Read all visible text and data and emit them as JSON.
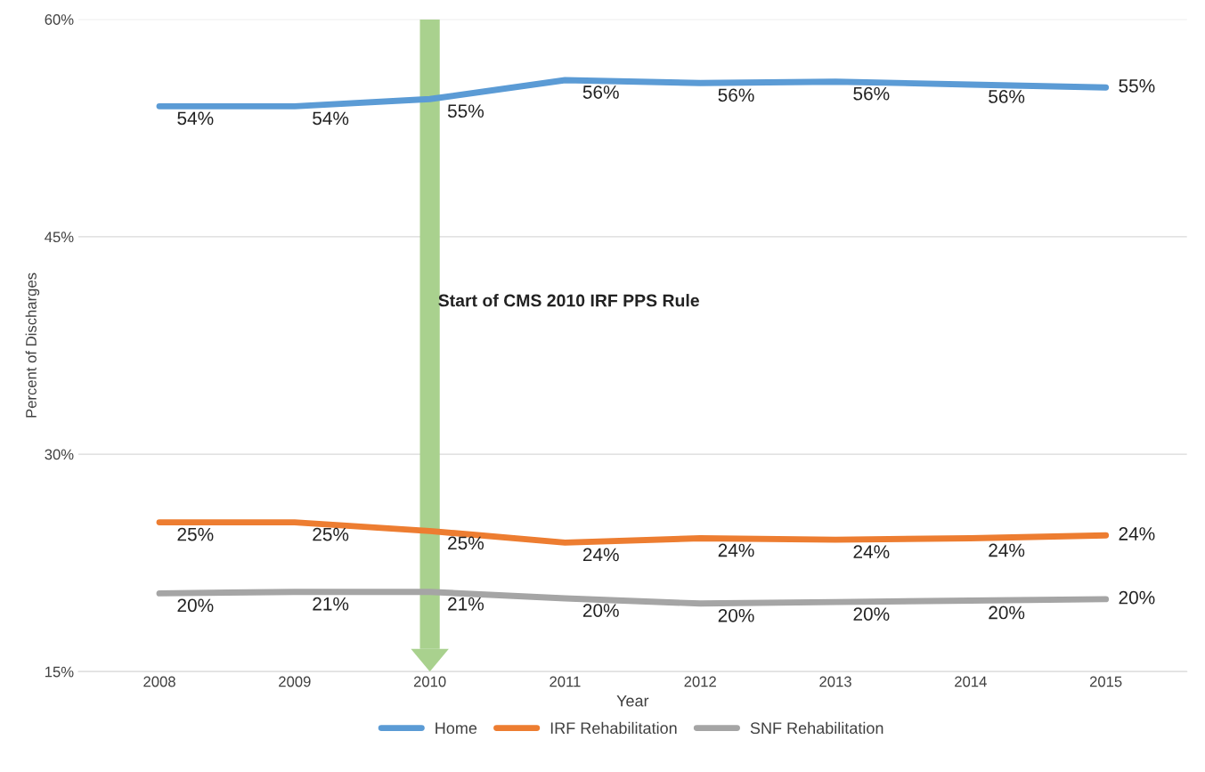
{
  "chart_data": {
    "type": "line",
    "xlabel": "Year",
    "ylabel": "Percent of Discharges",
    "categories": [
      "2008",
      "2009",
      "2010",
      "2011",
      "2012",
      "2013",
      "2014",
      "2015"
    ],
    "series": [
      {
        "name": "Home",
        "color": "#5b9bd5",
        "values": [
          54.0,
          54.0,
          54.5,
          55.8,
          55.6,
          55.7,
          55.5,
          55.3
        ],
        "value_labels": [
          "54%",
          "54%",
          "55%",
          "56%",
          "56%",
          "56%",
          "56%",
          "55%"
        ]
      },
      {
        "name": "IRF Rehabilitation",
        "color": "#ed7d31",
        "values": [
          25.3,
          25.3,
          24.7,
          23.9,
          24.2,
          24.1,
          24.2,
          24.4
        ],
        "value_labels": [
          "25%",
          "25%",
          "25%",
          "24%",
          "24%",
          "24%",
          "24%",
          "24%"
        ]
      },
      {
        "name": "SNF Rehabilitation",
        "color": "#a5a5a5",
        "values": [
          20.4,
          20.5,
          20.5,
          20.05,
          19.7,
          19.8,
          19.9,
          20.0
        ],
        "value_labels": [
          "20%",
          "21%",
          "21%",
          "20%",
          "20%",
          "20%",
          "20%",
          "20%"
        ]
      }
    ],
    "ylim": [
      15,
      60
    ],
    "yticks": [
      {
        "value": 15,
        "label": "15%"
      },
      {
        "value": 30,
        "label": "30%"
      },
      {
        "value": 45,
        "label": "45%"
      },
      {
        "value": 60,
        "label": "60%"
      }
    ],
    "ref_lines": [
      {
        "axis": "x",
        "value": "2010",
        "label": "Start of CMS 2010 IRF PPS Rule",
        "color": "#a9d18e"
      }
    ],
    "grid": "y",
    "legend": "bottom",
    "marker": "none",
    "line_style": "solid"
  }
}
